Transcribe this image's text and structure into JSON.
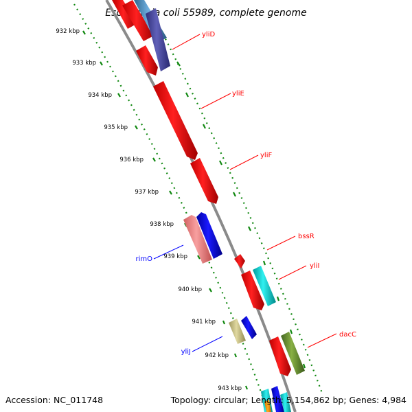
{
  "title": "Escherichia coli 55989, complete genome",
  "footer": {
    "accession": "Accession: NC_011748",
    "summary": "Topology: circular; Length: 5,154,862 bp; Genes: 4,984"
  },
  "kbp_labels": [
    "932 kbp",
    "933 kbp",
    "934 kbp",
    "935 kbp",
    "936 kbp",
    "937 kbp",
    "938 kbp",
    "939 kbp",
    "940 kbp",
    "941 kbp",
    "942 kbp",
    "943 kbp"
  ],
  "gene_labels": [
    {
      "text": "yliD",
      "color": "#ff0000"
    },
    {
      "text": "yliE",
      "color": "#ff0000"
    },
    {
      "text": "yliF",
      "color": "#ff0000"
    },
    {
      "text": "bssR",
      "color": "#ff0000"
    },
    {
      "text": "yliI",
      "color": "#ff0000"
    },
    {
      "text": "dacC",
      "color": "#ff0000"
    },
    {
      "text": "rimO",
      "color": "#0000ff"
    },
    {
      "text": "yliJ",
      "color": "#0000ff"
    }
  ],
  "colors": {
    "backbone": "#888888",
    "ticks": "#118811",
    "red": "#ff0000",
    "blue": "#0000ff",
    "pink": "#f08080",
    "cyan": "#00cccc",
    "olive": "#669933",
    "khaki": "#c8c080",
    "navy": "#4a4aa0",
    "steel": "#5090c0"
  }
}
